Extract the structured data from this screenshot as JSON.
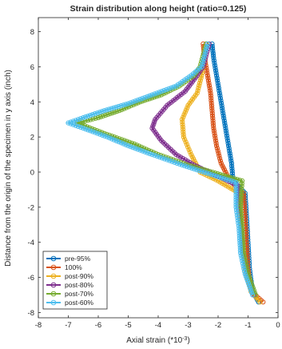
{
  "chart_data": {
    "type": "line",
    "title": "Strain distribution along height (ratio=0.125)",
    "xlabel": "Axial strain (*10",
    "xlabel_sup": "-3",
    "xlabel_tail": ")",
    "ylabel": "Distance from the origin of the specimen in y axis (inch)",
    "xlim": [
      -8,
      0
    ],
    "ylim": [
      -8.3,
      8.8
    ],
    "xticks": [
      -8,
      -7,
      -6,
      -5,
      -4,
      -3,
      -2,
      -1,
      0
    ],
    "yticks": [
      -8,
      -6,
      -4,
      -2,
      0,
      2,
      4,
      6,
      8
    ],
    "grid": false,
    "legend_position": "lower-left",
    "marker": "circle",
    "series": [
      {
        "name": "pre-95%",
        "color": "#0072BD",
        "points": [
          [
            -2.2,
            7.3
          ],
          [
            -2.15,
            6.5
          ],
          [
            -2.05,
            5.5
          ],
          [
            -1.95,
            4.5
          ],
          [
            -1.85,
            3.5
          ],
          [
            -1.75,
            2.5
          ],
          [
            -1.65,
            1.5
          ],
          [
            -1.55,
            0.5
          ],
          [
            -1.5,
            -0.5
          ],
          [
            -1.1,
            -1.2
          ],
          [
            -1.05,
            -2.5
          ],
          [
            -1.0,
            -4
          ],
          [
            -0.95,
            -5.5
          ],
          [
            -0.85,
            -6.8
          ],
          [
            -0.65,
            -7.4
          ]
        ]
      },
      {
        "name": "100%",
        "color": "#D95319",
        "points": [
          [
            -2.5,
            7.3
          ],
          [
            -2.45,
            6.5
          ],
          [
            -2.35,
            5.5
          ],
          [
            -2.25,
            4.5
          ],
          [
            -2.2,
            3.5
          ],
          [
            -2.15,
            2.5
          ],
          [
            -2.05,
            1.5
          ],
          [
            -1.9,
            0.5
          ],
          [
            -1.6,
            -0.5
          ],
          [
            -1.15,
            -1.2
          ],
          [
            -1.1,
            -2.5
          ],
          [
            -1.05,
            -4
          ],
          [
            -1.0,
            -5.5
          ],
          [
            -0.9,
            -6.8
          ],
          [
            -0.5,
            -7.4
          ]
        ]
      },
      {
        "name": "post-90%",
        "color": "#EDB120",
        "points": [
          [
            -2.4,
            7.3
          ],
          [
            -2.45,
            6.5
          ],
          [
            -2.55,
            5.5
          ],
          [
            -2.7,
            4.5
          ],
          [
            -3.0,
            3.8
          ],
          [
            -3.2,
            3.0
          ],
          [
            -3.15,
            2.0
          ],
          [
            -2.9,
            1.0
          ],
          [
            -2.6,
            0.0
          ],
          [
            -2.0,
            -0.5
          ],
          [
            -1.3,
            -1.2
          ],
          [
            -1.25,
            -2.5
          ],
          [
            -1.2,
            -4
          ],
          [
            -1.1,
            -5.5
          ],
          [
            -0.9,
            -6.8
          ],
          [
            -0.6,
            -7.4
          ]
        ]
      },
      {
        "name": "post-80%",
        "color": "#7E2F8E",
        "points": [
          [
            -2.3,
            7.3
          ],
          [
            -2.5,
            6.0
          ],
          [
            -2.7,
            5.5
          ],
          [
            -3.1,
            4.6
          ],
          [
            -3.7,
            3.8
          ],
          [
            -4.1,
            3.0
          ],
          [
            -4.2,
            2.5
          ],
          [
            -3.9,
            1.8
          ],
          [
            -3.4,
            1.0
          ],
          [
            -2.8,
            0.4
          ],
          [
            -1.3,
            -0.8
          ],
          [
            -1.3,
            -2.0
          ],
          [
            -1.25,
            -3.0
          ],
          [
            -1.2,
            -4.5
          ],
          [
            -1.05,
            -5.8
          ],
          [
            -0.8,
            -7.0
          ]
        ]
      },
      {
        "name": "post-70%",
        "color": "#77AC30",
        "points": [
          [
            -2.4,
            7.3
          ],
          [
            -2.6,
            6.0
          ],
          [
            -2.8,
            5.5
          ],
          [
            -3.3,
            4.9
          ],
          [
            -3.9,
            4.4
          ],
          [
            -4.6,
            4.0
          ],
          [
            -5.3,
            3.5
          ],
          [
            -6.0,
            3.1
          ],
          [
            -6.7,
            2.8
          ],
          [
            -5.8,
            2.2
          ],
          [
            -4.8,
            1.6
          ],
          [
            -4.0,
            1.0
          ],
          [
            -3.0,
            0.4
          ],
          [
            -1.2,
            -0.5
          ],
          [
            -1.25,
            -2.0
          ],
          [
            -1.2,
            -3.2
          ],
          [
            -1.15,
            -4.6
          ],
          [
            -1.0,
            -5.8
          ],
          [
            -0.75,
            -7.0
          ]
        ]
      },
      {
        "name": "post-60%",
        "color": "#4DBEEE",
        "points": [
          [
            -2.35,
            7.3
          ],
          [
            -2.55,
            6.0
          ],
          [
            -2.9,
            5.5
          ],
          [
            -3.4,
            4.9
          ],
          [
            -4.2,
            4.4
          ],
          [
            -5.0,
            3.9
          ],
          [
            -5.8,
            3.5
          ],
          [
            -6.5,
            3.1
          ],
          [
            -7.0,
            2.8
          ],
          [
            -6.5,
            2.5
          ],
          [
            -5.7,
            2.0
          ],
          [
            -5.0,
            1.5
          ],
          [
            -4.2,
            1.0
          ],
          [
            -3.2,
            0.4
          ],
          [
            -1.4,
            -0.6
          ],
          [
            -1.4,
            -2.0
          ],
          [
            -1.3,
            -3.2
          ],
          [
            -1.25,
            -4.6
          ],
          [
            -1.1,
            -5.8
          ],
          [
            -0.85,
            -7.0
          ]
        ]
      }
    ]
  }
}
